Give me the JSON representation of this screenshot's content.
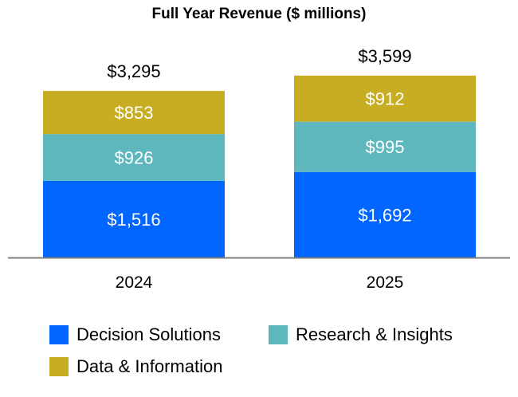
{
  "chart_data": {
    "type": "bar",
    "stacked": true,
    "title": "Full Year Revenue ($ millions)",
    "xlabel": "",
    "ylabel": "",
    "categories": [
      "2024",
      "2025"
    ],
    "series": [
      {
        "name": "Decision Solutions",
        "values": [
          1516,
          1692
        ],
        "labels": [
          "$1,516",
          "$1,692"
        ],
        "color": "#0066FF"
      },
      {
        "name": "Research & Insights",
        "values": [
          926,
          995
        ],
        "labels": [
          "$926",
          "$995"
        ],
        "color": "#5EB7BC"
      },
      {
        "name": "Data & Information",
        "values": [
          853,
          912
        ],
        "labels": [
          "$853",
          "$912"
        ],
        "color": "#C8AD22"
      }
    ],
    "totals": [
      3295,
      3599
    ],
    "total_labels": [
      "$3,295",
      "$3,599"
    ],
    "grid": false,
    "legend_position": "bottom"
  }
}
